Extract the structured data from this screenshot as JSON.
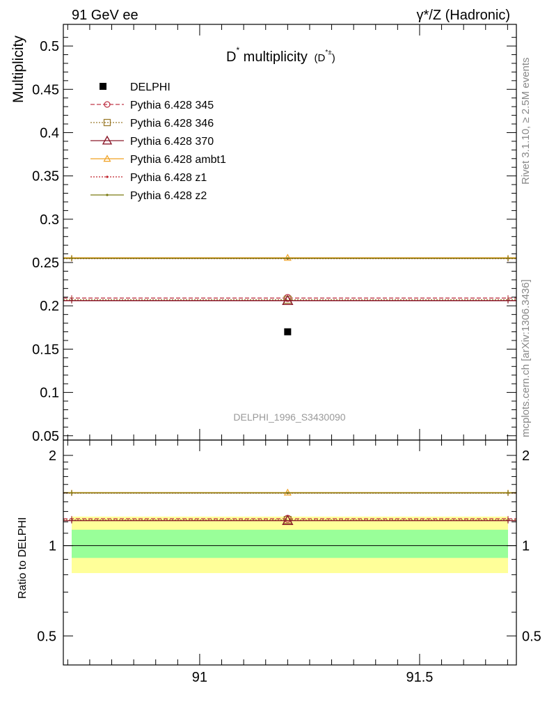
{
  "header": {
    "left": "91 GeV ee",
    "right": "γ*/Z (Hadronic)"
  },
  "side_labels": {
    "rivet": "Rivet 3.1.10, ≥ 2.5M events",
    "mcplots": "mcplots.cern.ch [arXiv:1306.3436]"
  },
  "chart_data": [
    {
      "type": "scatter",
      "title_main": "D",
      "title_main_sup": "*",
      "title_rest": " multiplicity",
      "title_paren_open": "(D",
      "title_paren_sup": "*±",
      "title_paren_close": ")",
      "ylabel": "Multiplicity",
      "ylim": [
        0.045,
        0.525
      ],
      "yticks": [
        0.05,
        0.1,
        0.15,
        0.2,
        0.25,
        0.3,
        0.35,
        0.4,
        0.45,
        0.5
      ],
      "ytick_labels": [
        "0.05",
        "0.1",
        "0.15",
        "0.2",
        "0.25",
        "0.3",
        "0.35",
        "0.4",
        "0.45",
        "0.5"
      ],
      "xlim": [
        90.69,
        91.72
      ],
      "watermark": "DELPHI_1996_S3430090",
      "data": {
        "name": "DELPHI",
        "x": 91.2,
        "y": 0.17
      },
      "series": [
        {
          "name": "Pythia 6.428 345",
          "color": "#c0394b",
          "style": "dashed",
          "marker": "circle",
          "x": [
            90.69,
            91.72
          ],
          "y": [
            0.209,
            0.209
          ],
          "marker_x": 91.2
        },
        {
          "name": "Pythia 6.428 346",
          "color": "#9b7b2c",
          "style": "dotted",
          "marker": "square",
          "x": [
            90.69,
            91.72
          ],
          "y": [
            0.207,
            0.207
          ],
          "marker_x": 91.2
        },
        {
          "name": "Pythia 6.428 370",
          "color": "#8b1a2b",
          "style": "solid",
          "marker": "triangle",
          "x": [
            90.69,
            91.72
          ],
          "y": [
            0.206,
            0.206
          ],
          "marker_x": 91.2
        },
        {
          "name": "Pythia 6.428 ambt1",
          "color": "#f0a020",
          "style": "solid",
          "marker": "triangle-small",
          "x": [
            90.69,
            91.72
          ],
          "y": [
            0.2555,
            0.2555
          ],
          "marker_x": 91.2
        },
        {
          "name": "Pythia 6.428 z1",
          "color": "#c0202a",
          "style": "dotted",
          "marker": "dot",
          "x": [
            90.69,
            91.72
          ],
          "y": [
            0.2545,
            0.2545
          ],
          "marker_x": 91.2
        },
        {
          "name": "Pythia 6.428 z2",
          "color": "#7a7a10",
          "style": "solid",
          "marker": "dot",
          "x": [
            90.69,
            91.72
          ],
          "y": [
            0.2548,
            0.2548
          ],
          "marker_x": 91.2
        }
      ]
    },
    {
      "type": "line",
      "ylabel": "Ratio to DELPHI",
      "ylim": [
        0.4,
        2.25
      ],
      "yticks": [
        0.5,
        1,
        2
      ],
      "ytick_labels": [
        "0.5",
        "1",
        "2"
      ],
      "xlim": [
        90.69,
        91.72
      ],
      "xticks": [
        91,
        91.5
      ],
      "xtick_labels": [
        "91",
        "91.5"
      ],
      "bands": [
        {
          "lo": 0.81,
          "hi": 1.25,
          "color": "#ffff99"
        },
        {
          "lo": 0.91,
          "hi": 1.13,
          "color": "#99ff99"
        }
      ],
      "ratios": [
        {
          "name": "Pythia 6.428 345",
          "value": 1.229
        },
        {
          "name": "Pythia 6.428 346",
          "value": 1.218
        },
        {
          "name": "Pythia 6.428 370",
          "value": 1.212
        },
        {
          "name": "Pythia 6.428 ambt1",
          "value": 1.503
        },
        {
          "name": "Pythia 6.428 z1",
          "value": 1.497
        },
        {
          "name": "Pythia 6.428 z2",
          "value": 1.499
        }
      ]
    }
  ]
}
